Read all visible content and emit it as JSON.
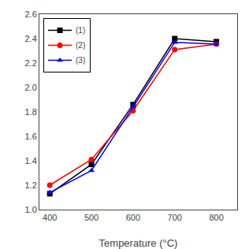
{
  "chart_data": {
    "type": "line",
    "xlabel": "Temperature (°C)",
    "x": [
      400,
      500,
      600,
      700,
      800
    ],
    "series": [
      {
        "name": "(1)",
        "color": "black",
        "marker": "square",
        "values": [
          1.13,
          1.37,
          1.86,
          2.4,
          2.375
        ]
      },
      {
        "name": "(2)",
        "color": "red",
        "marker": "circle",
        "values": [
          1.2,
          1.41,
          1.81,
          2.31,
          2.355
        ]
      },
      {
        "name": "(3)",
        "color": "blue",
        "marker": "triangle-up",
        "values": [
          1.14,
          1.32,
          1.84,
          2.37,
          2.355
        ]
      }
    ],
    "xlim": [
      375,
      850
    ],
    "ylim": [
      1.0,
      2.6
    ],
    "xticks": [
      400,
      500,
      600,
      700,
      800
    ],
    "yticks": [
      {
        "value": 1.0,
        "label": "1.0"
      },
      1.2,
      1.4,
      1.6,
      1.8,
      {
        "value": 2.0,
        "label": "2.0"
      },
      2.2,
      2.4,
      2.6
    ],
    "legend": "upper left",
    "grid": false
  }
}
